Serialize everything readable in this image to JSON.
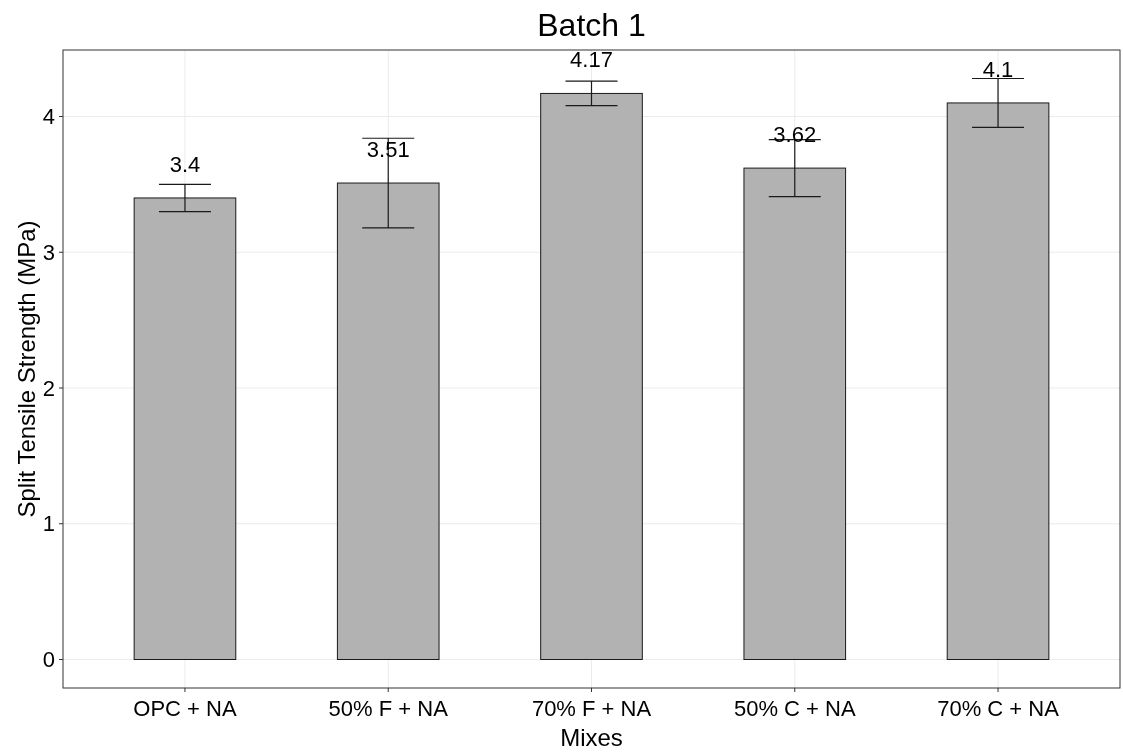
{
  "chart_data": {
    "type": "bar",
    "title": "Batch 1",
    "xlabel": "Mixes",
    "ylabel": "Split Tensile Strength (MPa)",
    "categories": [
      "OPC + NA",
      "50% F + NA",
      "70% F + NA",
      "50% C + NA",
      "70% C + NA"
    ],
    "values": [
      3.4,
      3.51,
      4.17,
      3.62,
      4.1
    ],
    "errors": [
      0.1,
      0.33,
      0.09,
      0.21,
      0.18
    ],
    "color": "#b2b2b2",
    "data_labels": true,
    "ylim": [
      -0.21,
      4.49
    ],
    "yticks": [
      0,
      1,
      2,
      3,
      4
    ],
    "grid": true
  }
}
